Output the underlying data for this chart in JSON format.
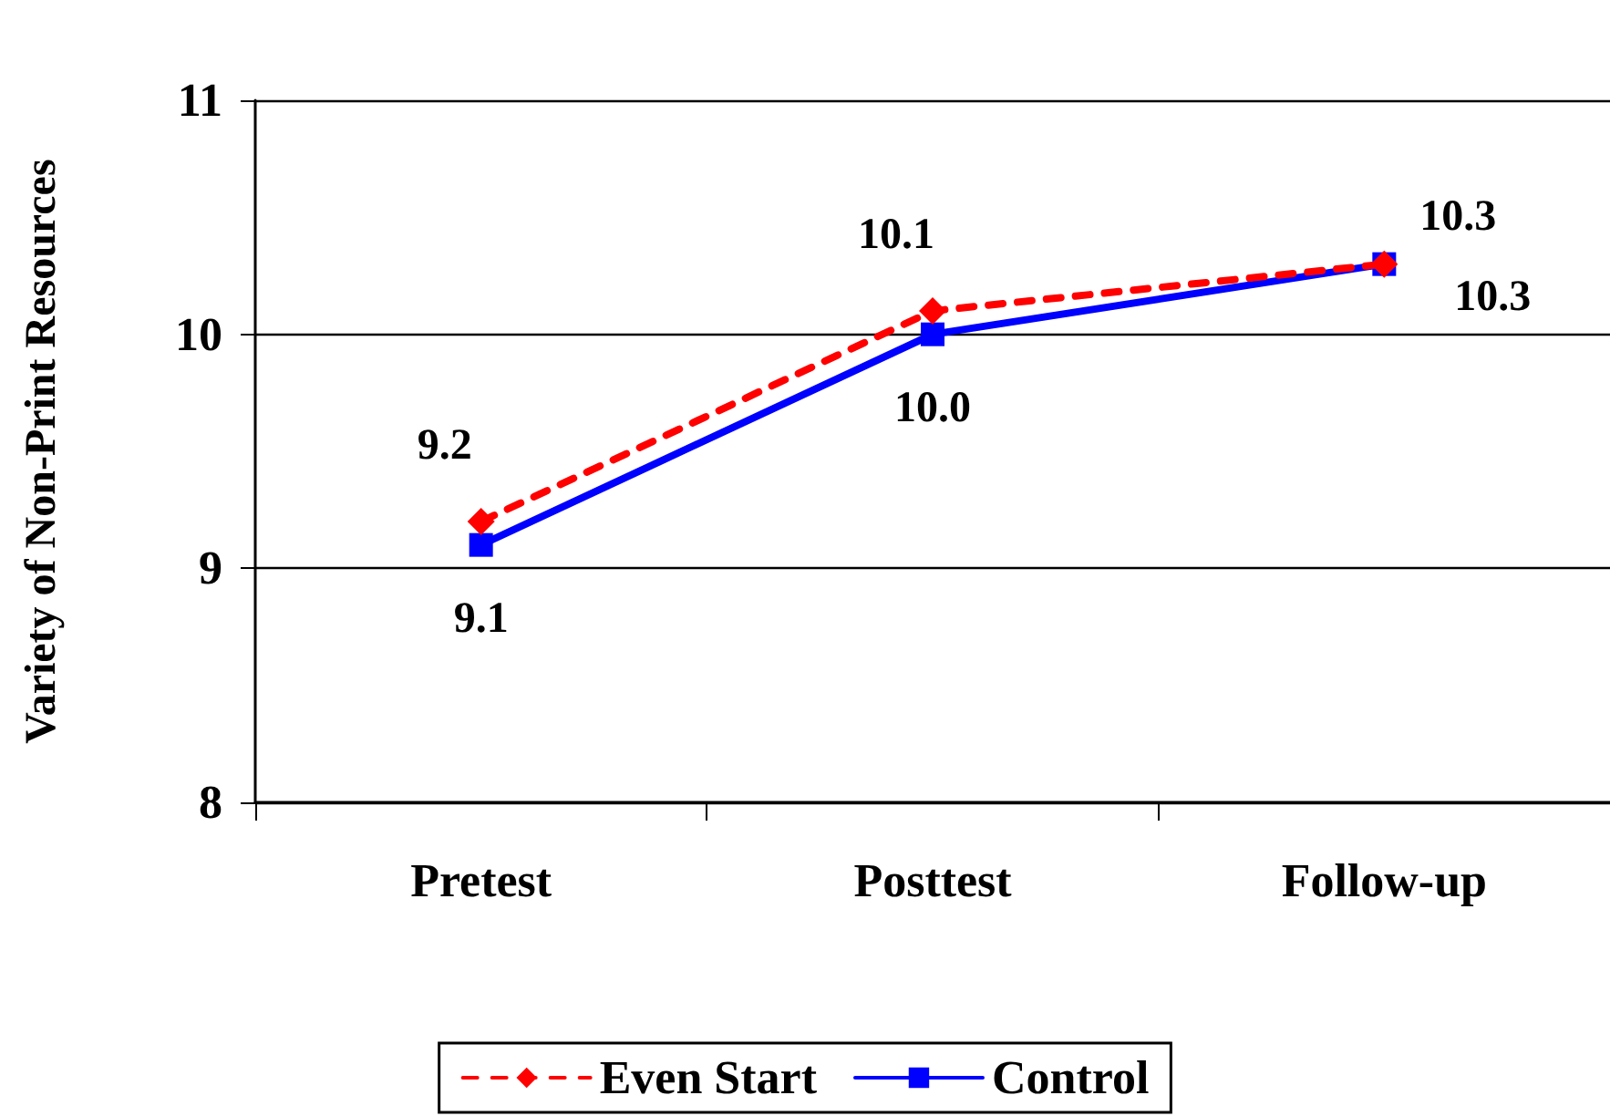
{
  "chart_data": {
    "type": "line",
    "ylabel": "Variety of Non-Print Resources",
    "categories": [
      "Pretest",
      "Posttest",
      "Follow-up"
    ],
    "series": [
      {
        "name": "Even Start",
        "color": "#ff0000",
        "values": [
          9.2,
          10.1,
          10.3
        ],
        "value_labels": [
          "9.2",
          "10.1",
          "10.3"
        ],
        "marker": "diamond",
        "line_style": "dashed"
      },
      {
        "name": "Control",
        "color": "#0000ff",
        "values": [
          9.1,
          10.0,
          10.3
        ],
        "value_labels": [
          "9.1",
          "10.0",
          "10.3"
        ],
        "marker": "square",
        "line_style": "solid"
      }
    ],
    "ylim": [
      8,
      11
    ],
    "yticks": [
      8,
      9,
      10,
      11
    ],
    "grid": "y",
    "legend": "bottom"
  }
}
